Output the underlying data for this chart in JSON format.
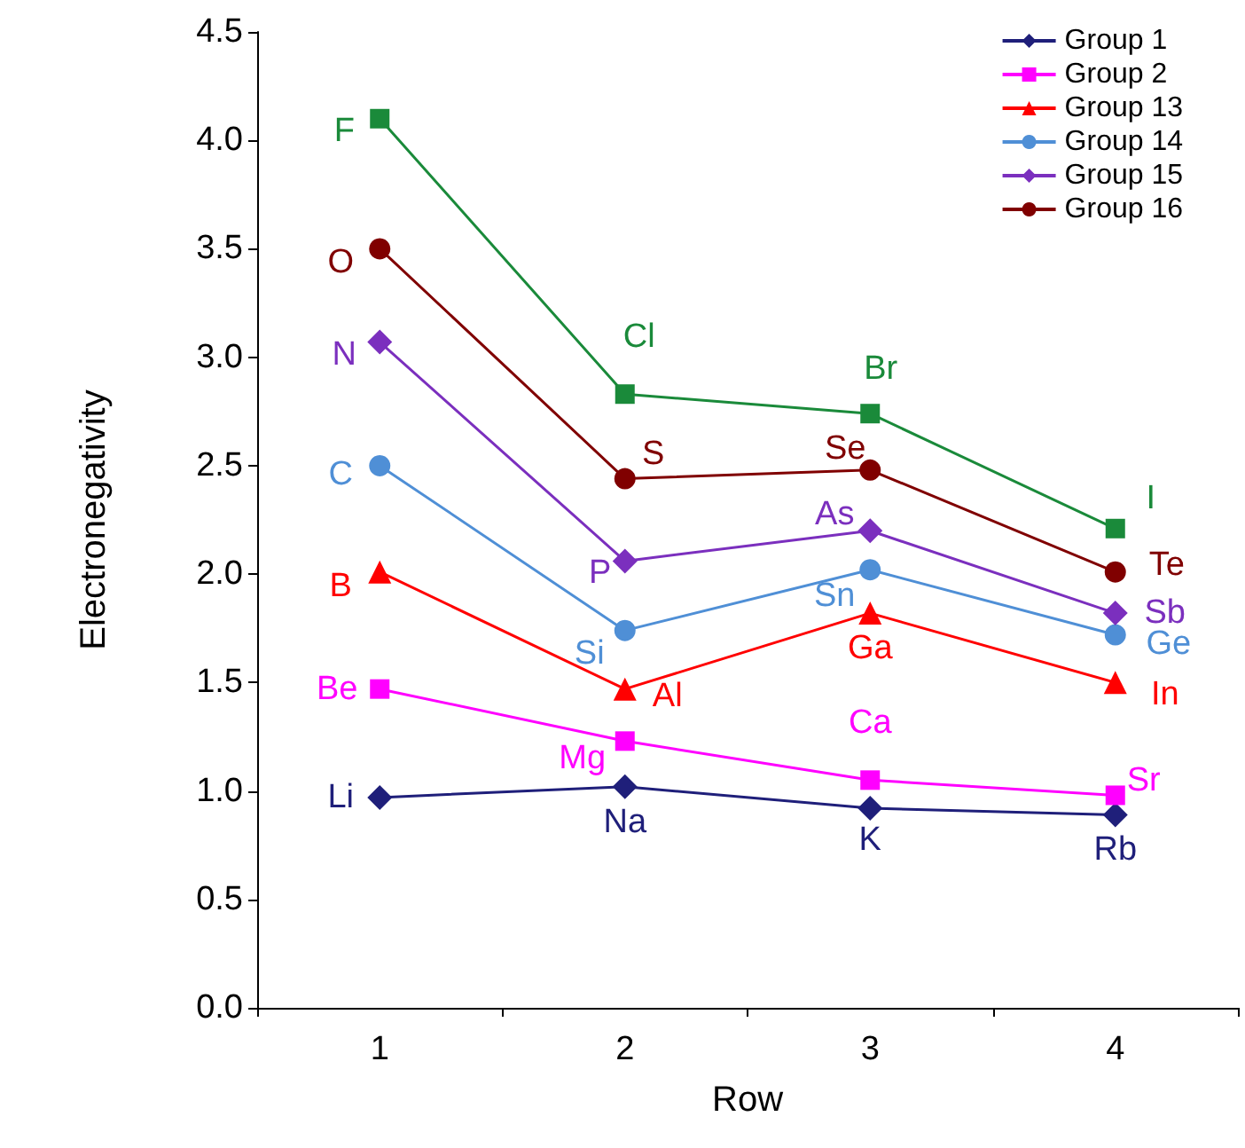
{
  "chart_data": {
    "type": "line",
    "xlabel": "Row",
    "ylabel": "Electronegativity",
    "categories": [
      "1",
      "2",
      "3",
      "4"
    ],
    "ylim": [
      0,
      4.5
    ],
    "yticks": [
      {
        "value": 0,
        "label": "0.0"
      },
      0.5,
      {
        "value": 1,
        "label": "1.0"
      },
      1.5,
      {
        "value": 2,
        "label": "2.0"
      },
      2.5,
      {
        "value": 3,
        "label": "3.0"
      },
      3.5,
      {
        "value": 4,
        "label": "4.0"
      },
      4.5
    ],
    "grid": false,
    "legend": "top right",
    "series": [
      {
        "name": "Group 1",
        "color": "#1f1f7a",
        "marker": "diamond",
        "values": [
          0.97,
          1.02,
          0.92,
          0.89
        ]
      },
      {
        "name": "Group 2",
        "color": "#ff00ff",
        "marker": "square",
        "values": [
          1.47,
          1.23,
          1.05,
          0.98
        ]
      },
      {
        "name": "Group 13",
        "color": "#ff0000",
        "marker": "triangle",
        "values": [
          2.01,
          1.47,
          1.82,
          1.5
        ]
      },
      {
        "name": "Group 14",
        "color": "#4f8fd6",
        "marker": "circle",
        "values": [
          2.5,
          1.74,
          2.02,
          1.72
        ]
      },
      {
        "name": "Group 15",
        "color": "#7b2fbe",
        "marker": "diamond",
        "values": [
          3.07,
          2.06,
          2.2,
          1.82
        ]
      },
      {
        "name": "Group 16",
        "color": "#800000",
        "marker": "circle",
        "values": [
          3.5,
          2.44,
          2.48,
          2.01
        ]
      },
      {
        "color": "#1a8a3a",
        "marker": "square",
        "values": [
          4.1,
          2.83,
          2.74,
          2.21
        ]
      }
    ],
    "annotations": [
      {
        "text": "Li",
        "x": "1",
        "y": 0.97
      },
      {
        "text": "Na",
        "x": "2",
        "y": 1.02
      },
      {
        "text": "K",
        "x": "3",
        "y": 0.92
      },
      {
        "text": "Rb",
        "x": "4",
        "y": 0.89
      },
      {
        "text": "Be",
        "x": "1",
        "y": 1.47
      },
      {
        "text": "Mg",
        "x": "2",
        "y": 1.23
      },
      {
        "text": "Ca",
        "x": "3",
        "y": 1.05
      },
      {
        "text": "Sr",
        "x": "4",
        "y": 0.98
      },
      {
        "text": "B",
        "x": "1",
        "y": 2.01
      },
      {
        "text": "Al",
        "x": "2",
        "y": 1.47
      },
      {
        "text": "Ga",
        "x": "3",
        "y": 1.82
      },
      {
        "text": "In",
        "x": "4",
        "y": 1.5
      },
      {
        "text": "C",
        "x": "1",
        "y": 2.5
      },
      {
        "text": "Si",
        "x": "2",
        "y": 1.74
      },
      {
        "text": "Sn",
        "x": "3",
        "y": 2.02
      },
      {
        "text": "Ge",
        "x": "4",
        "y": 1.72
      },
      {
        "text": "N",
        "x": "1",
        "y": 3.07
      },
      {
        "text": "P",
        "x": "2",
        "y": 2.06
      },
      {
        "text": "As",
        "x": "3",
        "y": 2.2
      },
      {
        "text": "Sb",
        "x": "4",
        "y": 1.82
      },
      {
        "text": "O",
        "x": "1",
        "y": 3.5
      },
      {
        "text": "S",
        "x": "2",
        "y": 2.44
      },
      {
        "text": "Se",
        "x": "3",
        "y": 2.48
      },
      {
        "text": "Te",
        "x": "4",
        "y": 2.01
      },
      {
        "text": "F",
        "x": "1",
        "y": 4.1
      },
      {
        "text": "Cl",
        "x": "2",
        "y": 2.83
      },
      {
        "text": "Br",
        "x": "3",
        "y": 2.74
      },
      {
        "text": "I",
        "x": "4",
        "y": 2.21
      }
    ]
  }
}
